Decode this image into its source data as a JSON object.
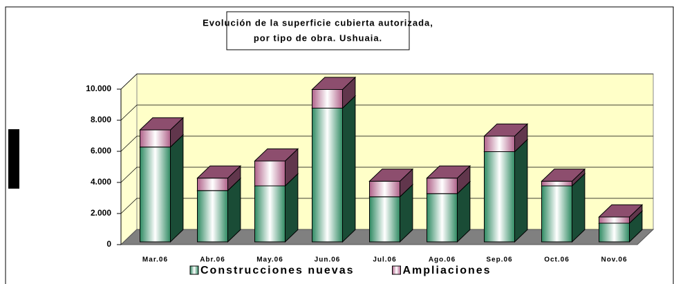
{
  "chart_data": {
    "type": "bar3d_stacked",
    "title": "Evolución de la superficie cubierta autorizada,",
    "subtitle": "por tipo de obra. Ushuaia.",
    "categories": [
      "Mar.06",
      "Abr.06",
      "May.06",
      "Jun.06",
      "Jul.06",
      "Ago.06",
      "Sep.06",
      "Oct.06",
      "Nov.06"
    ],
    "series": [
      {
        "name": "Construcciones nuevas",
        "color": "#2f8a62",
        "values": [
          6100,
          3300,
          3600,
          8600,
          2900,
          3100,
          5800,
          3600,
          1200
        ]
      },
      {
        "name": "Ampliaciones",
        "color": "#b0628a",
        "values": [
          1100,
          800,
          1600,
          1200,
          1000,
          1000,
          1000,
          300,
          400
        ]
      }
    ],
    "ylim": [
      0,
      10000
    ],
    "yticks": [
      0,
      {
        "value": 2000,
        "label": "2.000"
      },
      {
        "value": 4000,
        "label": "4.000"
      },
      {
        "value": 6000,
        "label": "6.000"
      },
      {
        "value": 8000,
        "label": "8.000"
      },
      {
        "value": 10000,
        "label": "10.000"
      }
    ],
    "grid": true,
    "legend": "bottom"
  }
}
